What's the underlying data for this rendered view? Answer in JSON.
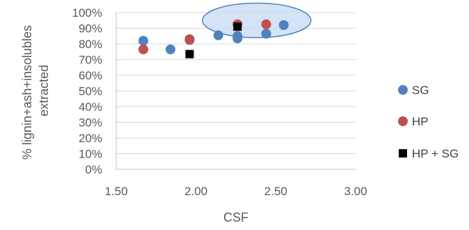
{
  "chart_data": {
    "type": "scatter",
    "title": "",
    "xlabel": "CSF",
    "ylabel_lines": [
      "% lignin+ash+insolubles",
      "extracted"
    ],
    "xlim": [
      1.5,
      3.0
    ],
    "ylim": [
      0,
      100
    ],
    "x_ticks": [
      "1.50",
      "2.00",
      "2.50",
      "3.00"
    ],
    "x_tick_values": [
      1.5,
      2.0,
      2.5,
      3.0
    ],
    "y_ticks": [
      "0%",
      "10%",
      "20%",
      "30%",
      "40%",
      "50%",
      "60%",
      "70%",
      "80%",
      "90%",
      "100%"
    ],
    "y_tick_values": [
      0,
      10,
      20,
      30,
      40,
      50,
      60,
      70,
      80,
      90,
      100
    ],
    "grid": "horizontal",
    "legend_position": "right",
    "series": [
      {
        "name": "SG",
        "color": "#4f81bd",
        "marker": "circle",
        "points": [
          [
            1.67,
            82
          ],
          [
            1.84,
            76.5
          ],
          [
            1.96,
            82.5
          ],
          [
            2.14,
            85.5
          ],
          [
            2.26,
            85
          ],
          [
            2.26,
            83.5
          ],
          [
            2.44,
            86.5
          ],
          [
            2.55,
            92
          ]
        ]
      },
      {
        "name": "HP",
        "color": "#c0504d",
        "marker": "circle",
        "points": [
          [
            1.67,
            76.5
          ],
          [
            1.96,
            83
          ],
          [
            2.26,
            92.5
          ],
          [
            2.44,
            92.5
          ]
        ]
      },
      {
        "name": "HP + SG",
        "color": "#000000",
        "marker": "square",
        "points": [
          [
            1.96,
            73.5
          ],
          [
            2.26,
            91
          ]
        ]
      }
    ],
    "highlight": {
      "shape": "ellipse",
      "center": [
        2.38,
        95
      ],
      "radius": [
        0.34,
        11
      ],
      "fill": "#c6d9f1",
      "stroke": "#4f81bd"
    }
  }
}
